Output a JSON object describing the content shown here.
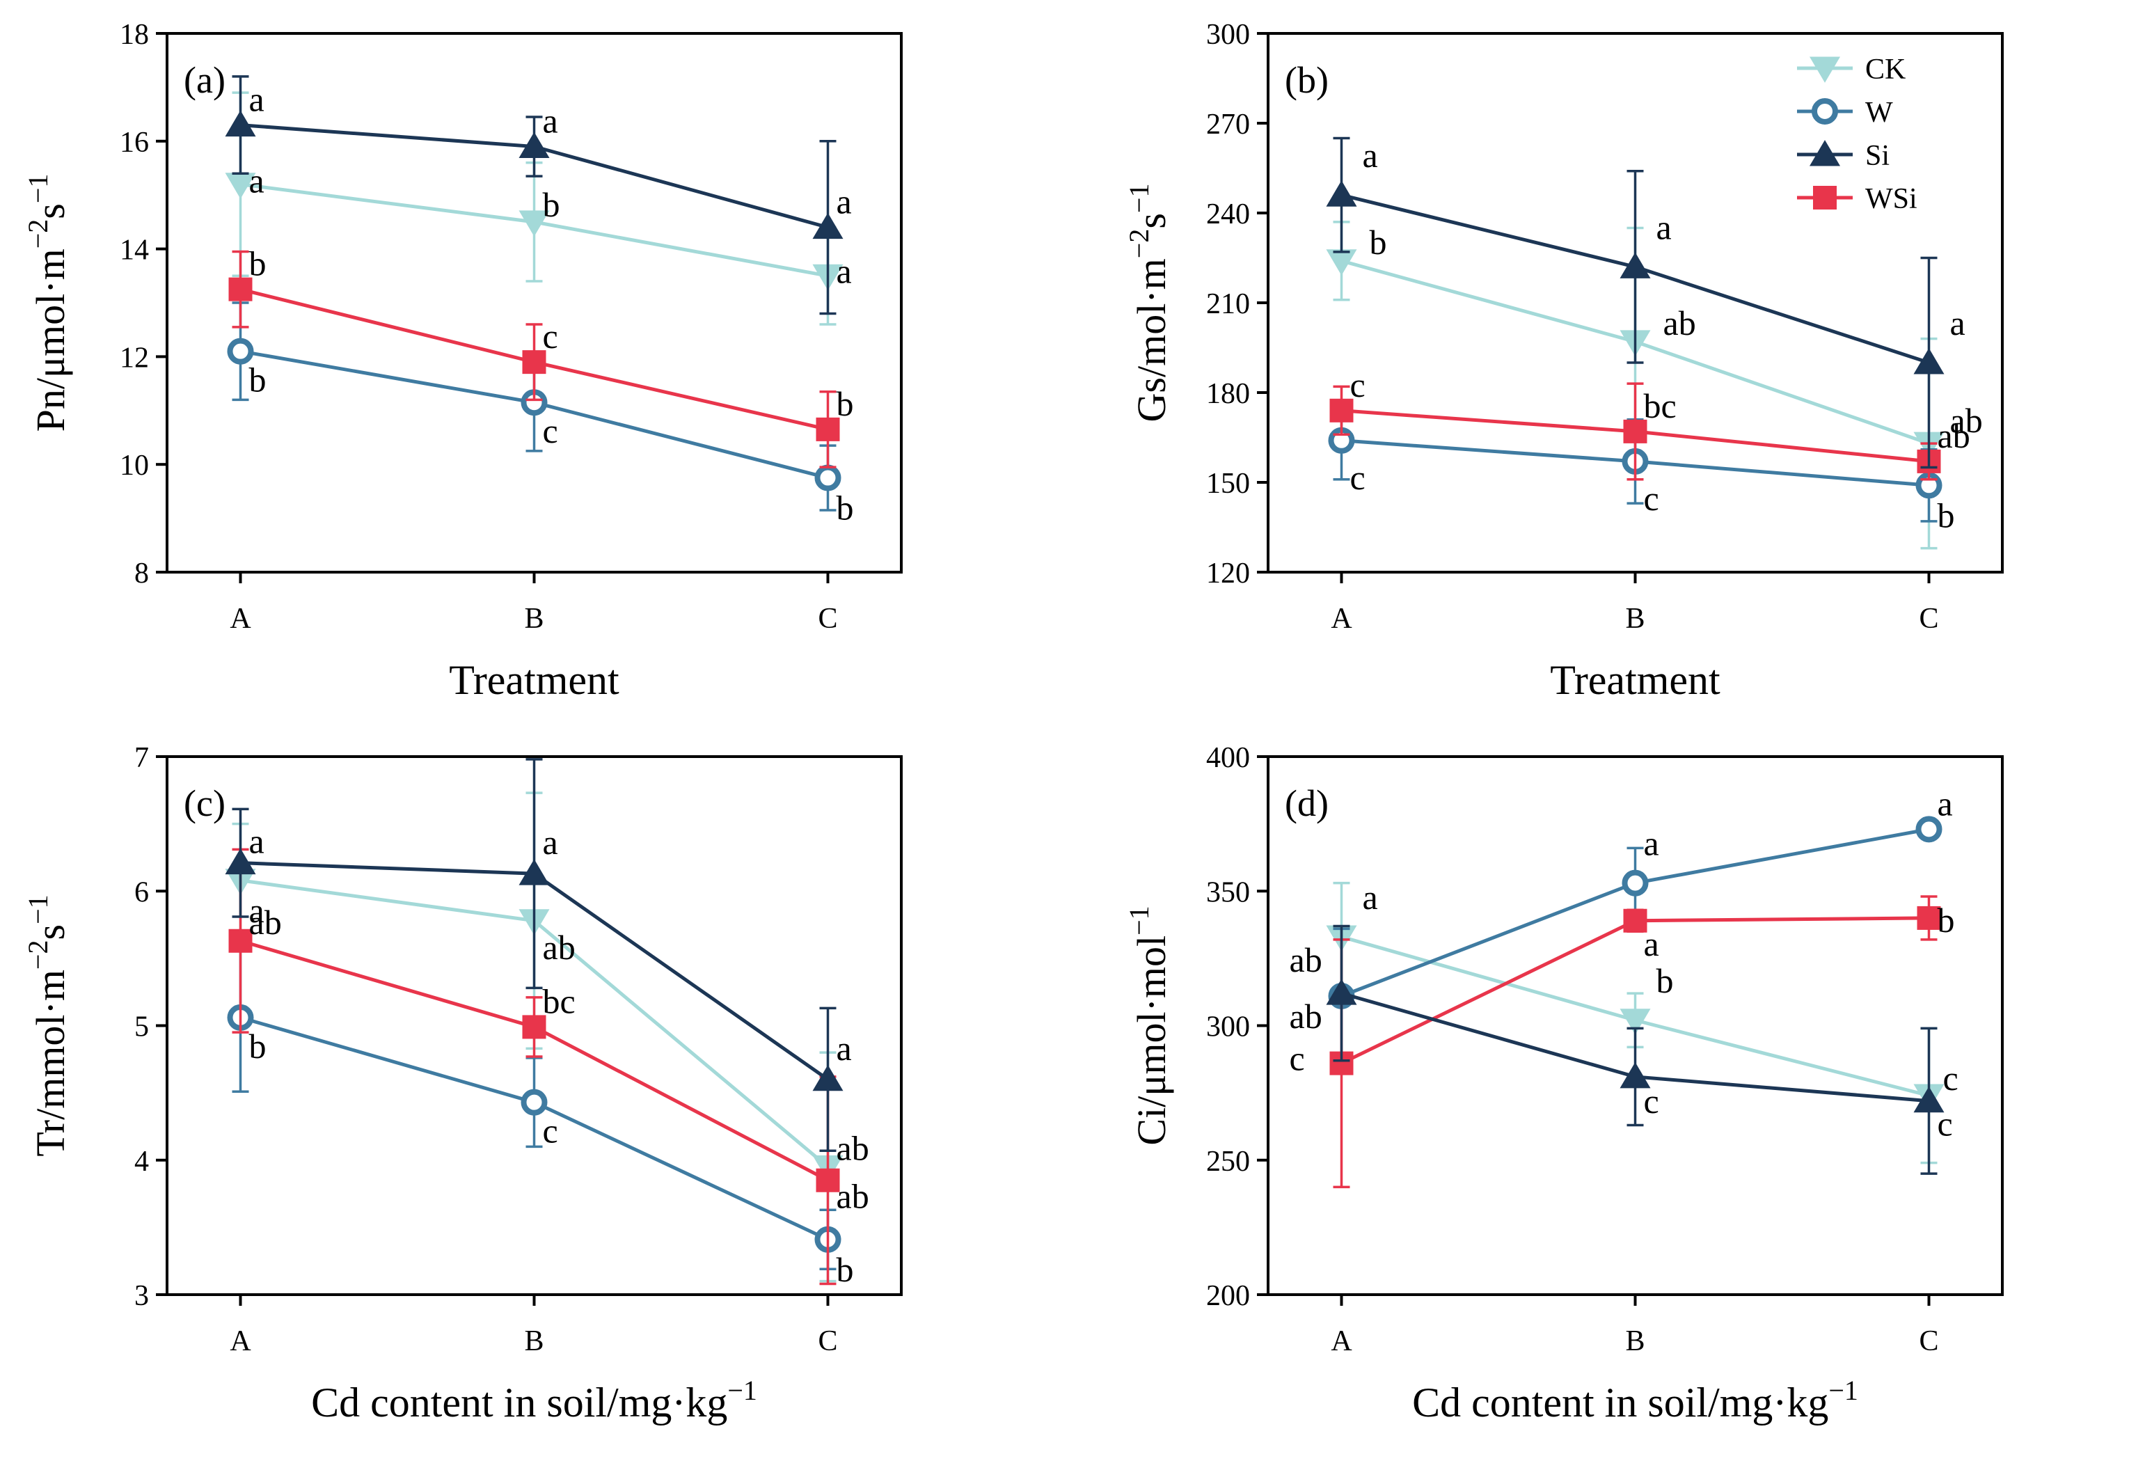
{
  "chart_data": [
    {
      "type": "line",
      "panel_label": "(a)",
      "ylabel": {
        "base": "Pn/μmol·m",
        "sup1": "−2",
        "mid": "s",
        "sup2": "−1"
      },
      "xlabel": "Treatment",
      "categories": [
        "A",
        "B",
        "C"
      ],
      "ylim": [
        8,
        18
      ],
      "yticks": [
        8,
        10,
        12,
        14,
        16,
        18
      ],
      "series": [
        {
          "name": "CK",
          "values": [
            15.2,
            14.5,
            13.5
          ],
          "err": [
            1.7,
            1.1,
            0.9
          ],
          "letters": [
            "a",
            "b",
            "a"
          ]
        },
        {
          "name": "W",
          "values": [
            12.1,
            11.15,
            9.75
          ],
          "err": [
            0.9,
            0.9,
            0.6
          ],
          "letters": [
            "b",
            "c",
            "b"
          ]
        },
        {
          "name": "Si",
          "values": [
            16.3,
            15.9,
            14.4
          ],
          "err": [
            0.9,
            0.55,
            1.6
          ],
          "letters": [
            "a",
            "a",
            "a"
          ]
        },
        {
          "name": "WSi",
          "values": [
            13.25,
            11.9,
            10.65
          ],
          "err": [
            0.7,
            0.7,
            0.7
          ],
          "letters": [
            "b",
            "c",
            "b"
          ]
        }
      ]
    },
    {
      "type": "line",
      "panel_label": "(b)",
      "ylabel": {
        "base": "Gs/mol·m",
        "sup1": "−2",
        "mid": "s",
        "sup2": "−1"
      },
      "xlabel": "Treatment",
      "categories": [
        "A",
        "B",
        "C"
      ],
      "ylim": [
        120,
        300
      ],
      "yticks": [
        120,
        150,
        180,
        210,
        240,
        270,
        300
      ],
      "series": [
        {
          "name": "CK",
          "values": [
            224,
            197,
            163
          ],
          "err": [
            13,
            38,
            35
          ],
          "letters": [
            "b",
            "ab",
            "ab"
          ]
        },
        {
          "name": "W",
          "values": [
            164,
            157,
            149
          ],
          "err": [
            13,
            14,
            12
          ],
          "letters": [
            "c",
            "c",
            "b"
          ]
        },
        {
          "name": "Si",
          "values": [
            246,
            222,
            190
          ],
          "err": [
            19,
            32,
            35
          ],
          "letters": [
            "a",
            "a",
            "a"
          ]
        },
        {
          "name": "WSi",
          "values": [
            174,
            167,
            157
          ],
          "err": [
            8,
            16,
            6
          ],
          "letters": [
            "c",
            "bc",
            "ab"
          ]
        }
      ]
    },
    {
      "type": "line",
      "panel_label": "(c)",
      "ylabel": {
        "base": "Tr/mmol·m",
        "sup1": "−2",
        "mid": "s",
        "sup2": "−1"
      },
      "xlabel": "Cd content in soil/mg·kg",
      "xlabel_sup": "−1",
      "categories": [
        "A",
        "B",
        "C"
      ],
      "ylim": [
        3,
        7
      ],
      "yticks": [
        3,
        4,
        5,
        6,
        7
      ],
      "series": [
        {
          "name": "CK",
          "values": [
            6.08,
            5.78,
            3.95
          ],
          "err": [
            0.42,
            0.95,
            0.85
          ],
          "letters": [
            "a",
            "ab",
            "ab"
          ]
        },
        {
          "name": "W",
          "values": [
            5.06,
            4.43,
            3.41
          ],
          "err": [
            0.55,
            0.33,
            0.22
          ],
          "letters": [
            "b",
            "c",
            "b"
          ]
        },
        {
          "name": "Si",
          "values": [
            6.21,
            6.13,
            4.6
          ],
          "err": [
            0.4,
            0.85,
            0.53
          ],
          "letters": [
            "a",
            "a",
            "a"
          ]
        },
        {
          "name": "WSi",
          "values": [
            5.63,
            4.99,
            3.85
          ],
          "err": [
            0.68,
            0.22,
            0.77
          ],
          "letters": [
            "ab",
            "bc",
            "ab"
          ]
        }
      ]
    },
    {
      "type": "line",
      "panel_label": "(d)",
      "ylabel": {
        "base": "Ci/μmol·mol",
        "sup1": "",
        "mid": "",
        "sup2": "−1"
      },
      "xlabel": "Cd content in soil/mg·kg",
      "xlabel_sup": "−1",
      "categories": [
        "A",
        "B",
        "C"
      ],
      "ylim": [
        200,
        400
      ],
      "yticks": [
        200,
        250,
        300,
        350,
        400
      ],
      "series": [
        {
          "name": "CK",
          "values": [
            333,
            302,
            274
          ],
          "err": [
            20,
            10,
            25
          ],
          "letters": [
            "a",
            "b",
            "c"
          ]
        },
        {
          "name": "W",
          "values": [
            311,
            353,
            373
          ],
          "err": [
            25,
            13,
            2
          ],
          "letters": [
            "ab",
            "a",
            "a"
          ]
        },
        {
          "name": "Si",
          "values": [
            312,
            281,
            272
          ],
          "err": [
            25,
            18,
            27
          ],
          "letters": [
            "ab",
            "c",
            "c"
          ]
        },
        {
          "name": "WSi",
          "values": [
            286,
            339,
            340
          ],
          "err": [
            46,
            4,
            8
          ],
          "letters": [
            "c",
            "a",
            "b"
          ]
        }
      ]
    }
  ],
  "legend": {
    "placement": "top-right of panel (b)",
    "entries": [
      {
        "name": "CK",
        "marker": "triangle-down",
        "color": "#a3d9d8"
      },
      {
        "name": "W",
        "marker": "circle-open",
        "color": "#3f7ba1"
      },
      {
        "name": "Si",
        "marker": "triangle-up",
        "color": "#1c3655"
      },
      {
        "name": "WSi",
        "marker": "square",
        "color": "#e8354b"
      }
    ]
  }
}
